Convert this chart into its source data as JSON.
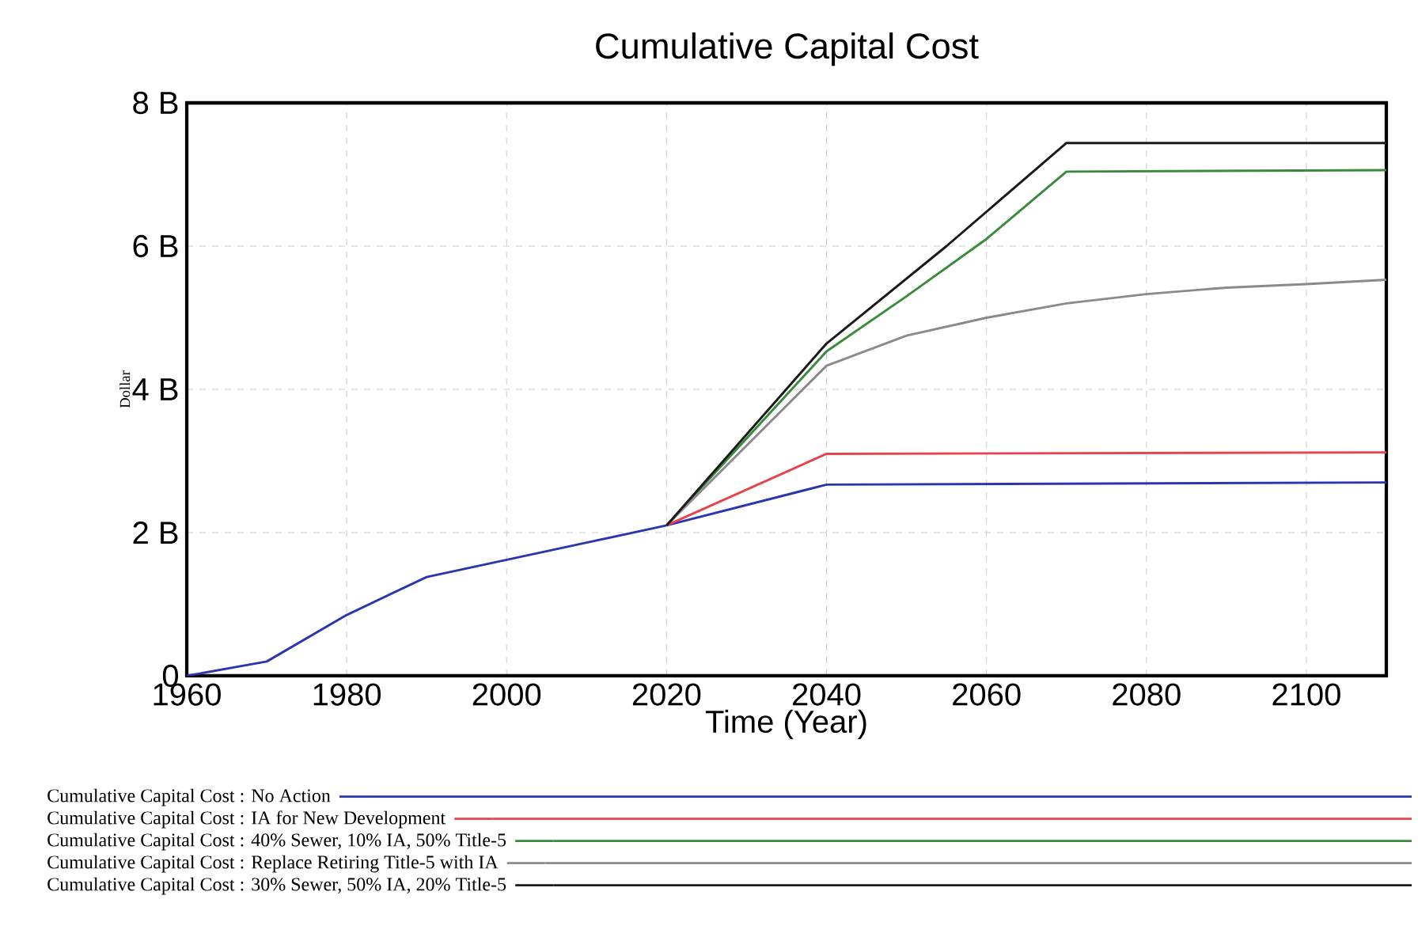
{
  "chart_data": {
    "type": "line",
    "title": "Cumulative Capital Cost",
    "xlabel": "Time (Year)",
    "ylabel": "Dollar",
    "xlim": [
      1960,
      2110
    ],
    "xticks": [
      1960,
      1980,
      2000,
      2020,
      2040,
      2060,
      2080,
      2100
    ],
    "ylim": [
      0,
      8
    ],
    "yticks": [
      0,
      {
        "value": 2,
        "label": "2 B"
      },
      {
        "value": 4,
        "label": "4 B"
      },
      {
        "value": 6,
        "label": "6 B"
      },
      {
        "value": 8,
        "label": "8 B"
      }
    ],
    "grid": true,
    "legend": "bottom",
    "line_style": "solid",
    "marker": "none",
    "series": [
      {
        "name": "Cumulative Capital Cost : No Action",
        "color": "#2b35b0",
        "x": [
          1960,
          1970,
          1980,
          1990,
          2000,
          2010,
          2020,
          2040,
          2110
        ],
        "values": [
          0,
          0.2,
          0.85,
          1.38,
          1.62,
          1.86,
          2.1,
          2.67,
          2.7
        ]
      },
      {
        "name": "Cumulative Capital Cost : IA for New Development",
        "color": "#e8434a",
        "x": [
          2020,
          2040,
          2110
        ],
        "values": [
          2.1,
          3.1,
          3.12
        ]
      },
      {
        "name": "Cumulative Capital Cost : 40% Sewer, 10% IA, 50% Title-5",
        "color": "#3a8a3e",
        "x": [
          2020,
          2040,
          2050,
          2060,
          2070,
          2110
        ],
        "values": [
          2.1,
          4.53,
          5.3,
          6.1,
          7.04,
          7.06
        ]
      },
      {
        "name": "Cumulative Capital Cost : Replace Retiring Title-5 with IA",
        "color": "#8a8a8a",
        "x": [
          2020,
          2040,
          2050,
          2060,
          2070,
          2080,
          2090,
          2100,
          2110
        ],
        "values": [
          2.1,
          4.33,
          4.75,
          5.0,
          5.2,
          5.33,
          5.42,
          5.47,
          5.53
        ]
      },
      {
        "name": "Cumulative Capital Cost : 30% Sewer, 50% IA, 20% Title-5",
        "color": "#1a1a1a",
        "x": [
          2020,
          2040,
          2055,
          2070,
          2110
        ],
        "values": [
          2.1,
          4.64,
          6.0,
          7.44,
          7.44
        ]
      }
    ]
  }
}
